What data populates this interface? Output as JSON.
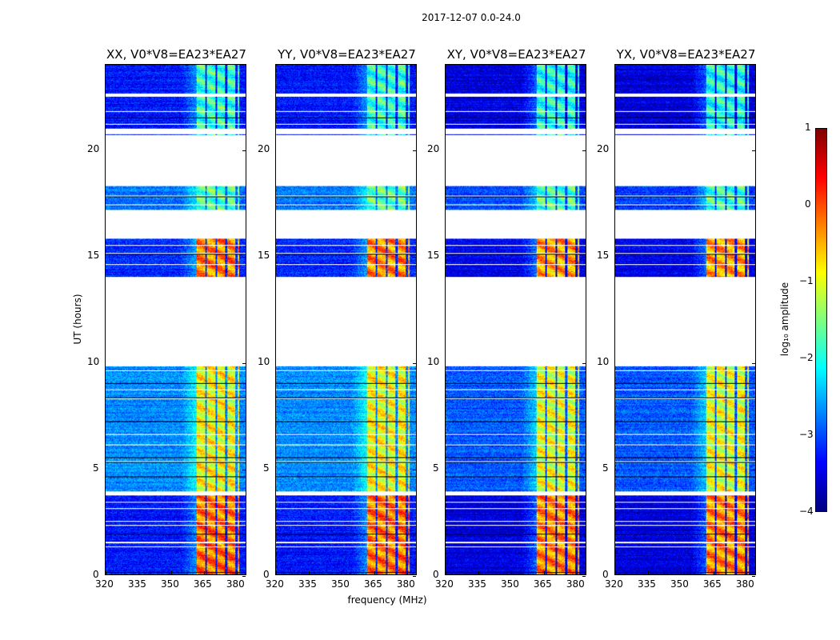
{
  "chart_data": {
    "type": "heatmap",
    "title": "2017-12-07 0.0-24.0",
    "xlabel": "frequency (MHz)",
    "ylabel": "UT (hours)",
    "xlim": [
      320,
      384.8
    ],
    "ylim": [
      0,
      24
    ],
    "xticks": [
      320,
      335,
      350,
      365,
      380
    ],
    "yticks": [
      0,
      5,
      10,
      15,
      20
    ],
    "panels": [
      {
        "title": "XX, V0*V8=EA23*EA27",
        "cross": false
      },
      {
        "title": "YY, V0*V8=EA23*EA27",
        "cross": false
      },
      {
        "title": "XY, V0*V8=EA23*EA27",
        "cross": true
      },
      {
        "title": "YX, V0*V8=EA23*EA27",
        "cross": true
      }
    ],
    "blank_ut_ranges": [
      [
        22.5,
        22.66
      ],
      [
        20.75,
        21.0
      ],
      [
        18.3,
        20.7
      ],
      [
        15.8,
        17.15
      ],
      [
        9.8,
        14.0
      ],
      [
        3.7,
        3.9
      ]
    ],
    "flag_rows_ut": [
      21.8,
      21.5,
      21.2,
      17.8,
      17.4,
      15.5,
      15.1,
      14.6,
      9.6,
      9.0,
      8.7,
      8.3,
      7.2,
      6.6,
      6.1,
      5.5,
      5.3,
      4.6,
      3.4,
      3.1,
      2.5,
      2.3,
      1.9,
      1.5,
      1.3,
      0.1
    ],
    "band_mhz": [
      362,
      382
    ],
    "band_gaps_mhz": [
      [
        366.2,
        367
      ],
      [
        370.8,
        371.6
      ],
      [
        375.4,
        376.2
      ],
      [
        380.2,
        381
      ]
    ],
    "levels_log10": [
      {
        "ut": [
          0,
          3.7
        ],
        "band": -0.2,
        "bg": -3.3
      },
      {
        "ut": [
          3.9,
          9.8
        ],
        "band": -0.9,
        "bg": -2.7
      },
      {
        "ut": [
          14.0,
          15.8
        ],
        "band": -0.3,
        "bg": -3.2
      },
      {
        "ut": [
          17.15,
          18.3
        ],
        "band": -1.7,
        "bg": -2.8
      },
      {
        "ut": [
          20.7,
          24
        ],
        "band": -1.9,
        "bg": -3.3
      }
    ],
    "colorbar": {
      "label": "log₁₀ amplitude",
      "range": [
        -4,
        1
      ],
      "ticks": [
        "1",
        "0",
        "−1",
        "−2",
        "−3",
        "−4"
      ]
    }
  }
}
